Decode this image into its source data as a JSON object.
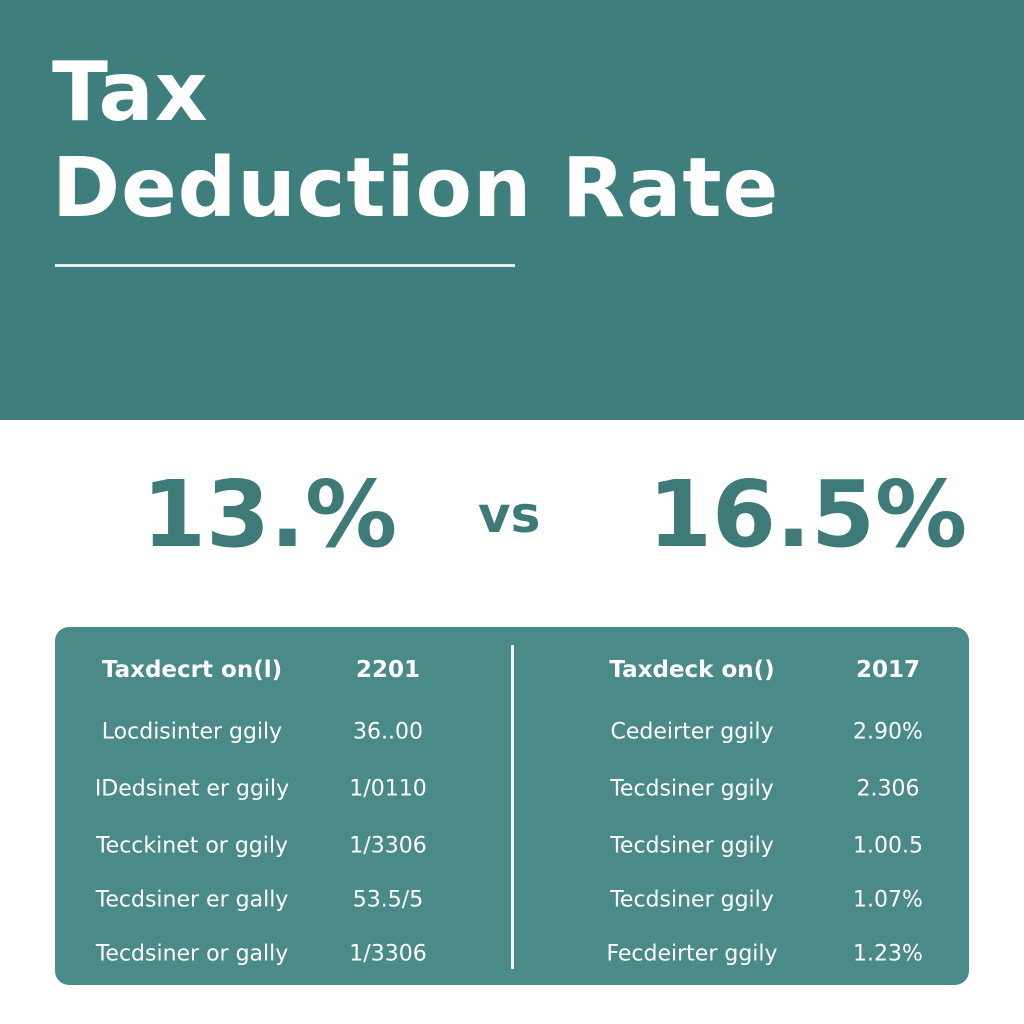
{
  "header": {
    "title_line1": "Tax",
    "title_line2": "Deduction Rate"
  },
  "comparison": {
    "left": "13.%",
    "separator": "vs",
    "right": "16.5%"
  },
  "tables": [
    {
      "header": [
        "Taxdecrt on(l)",
        "2201"
      ],
      "rows": [
        [
          "Locdisinter ggily",
          "36..00"
        ],
        [
          "IDedsinet er ggily",
          "1/0110"
        ],
        [
          "Tecckinet or ggily",
          "1/3306"
        ],
        [
          "Tecdsiner er gally",
          "53.5/5"
        ],
        [
          "Tecdsiner or gally",
          "1/3306"
        ]
      ]
    },
    {
      "header": [
        "Taxdeck on()",
        "2017"
      ],
      "rows": [
        [
          "Cedeirter ggily",
          "2.90%"
        ],
        [
          "Tecdsiner ggily",
          "2.306"
        ],
        [
          "Tecdsiner ggily",
          "1.00.5"
        ],
        [
          "Tecdsiner ggily",
          "1.07%"
        ],
        [
          "Fecdeirter ggily",
          "1.23%"
        ]
      ]
    }
  ]
}
